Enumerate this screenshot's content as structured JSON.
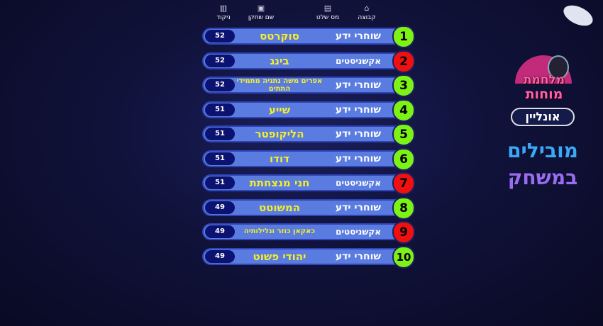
{
  "headers": [
    {
      "label": "ניקוד",
      "icon": "score-icon"
    },
    {
      "label": "שם שחקן",
      "icon": "player-icon"
    },
    {
      "label": "מס שלט",
      "icon": "remote-icon"
    },
    {
      "label": "קבוצה",
      "icon": "team-icon"
    }
  ],
  "colors": {
    "green": "#7cf215",
    "red": "#f01010",
    "bar": "#5a7be0",
    "score_bg": "#0b1270",
    "name": "#f4ee2a"
  },
  "rows": [
    {
      "rank": "1",
      "team": "שוחרי ידע",
      "name": "סוקרטס",
      "score": "52",
      "color": "green"
    },
    {
      "rank": "2",
      "team": "אקשניסטים",
      "name": "בינג",
      "score": "52",
      "color": "red"
    },
    {
      "rank": "3",
      "team": "שוחרי ידע",
      "name": "אפרים משה נתניה מתמידי התתים",
      "score": "52",
      "color": "green"
    },
    {
      "rank": "4",
      "team": "שוחרי ידע",
      "name": "שייע",
      "score": "51",
      "color": "green"
    },
    {
      "rank": "5",
      "team": "שוחרי ידע",
      "name": "הליקופטר",
      "score": "51",
      "color": "green"
    },
    {
      "rank": "6",
      "team": "שוחרי ידע",
      "name": "דודו",
      "score": "51",
      "color": "green"
    },
    {
      "rank": "7",
      "team": "אקשניסטים",
      "name": "חני מנצחתת",
      "score": "51",
      "color": "red"
    },
    {
      "rank": "8",
      "team": "שוחרי ידע",
      "name": "המשוטט",
      "score": "49",
      "color": "green"
    },
    {
      "rank": "9",
      "team": "אקשניסטים",
      "name": "כאקאן כוזר ונלילותיה",
      "score": "49",
      "color": "red"
    },
    {
      "rank": "10",
      "team": "שוחרי ידע",
      "name": "יהודי פשוט",
      "score": "49",
      "color": "green"
    }
  ],
  "logo": {
    "line1": "מלחמת",
    "line2": "מוחות",
    "line3": "אונליין"
  },
  "title": {
    "line1": "מובילים",
    "line2": "במשחק"
  }
}
